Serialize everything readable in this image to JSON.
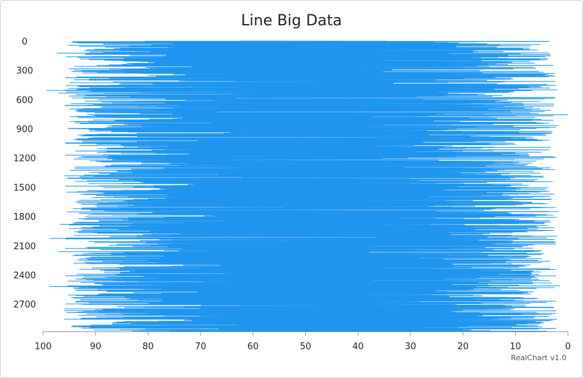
{
  "chart_data": {
    "type": "line",
    "title": "Line Big Data",
    "orientation": "horizontal",
    "xlabel": "",
    "ylabel": "",
    "xlim": [
      100,
      0
    ],
    "x_ticks": [
      100,
      90,
      80,
      70,
      60,
      50,
      40,
      30,
      20,
      10,
      0
    ],
    "ylim": [
      0,
      2980
    ],
    "y_ticks": [
      0,
      300,
      600,
      900,
      1200,
      1500,
      1800,
      2100,
      2400,
      2700
    ],
    "grid": false,
    "legend": "none",
    "series_color": "#1e96f0",
    "point_count": 2981,
    "generation": "pseudo-random noise between roughly 0 and 100, indexed 0..2980; the plot reads as a dense blue band spanning nearly the full value range",
    "sample_points": [
      {
        "index": 0,
        "value": 95
      },
      {
        "index": 300,
        "value": 4
      },
      {
        "index": 600,
        "value": 98
      },
      {
        "index": 900,
        "value": 3
      },
      {
        "index": 1200,
        "value": 97
      },
      {
        "index": 1500,
        "value": 1
      },
      {
        "index": 1800,
        "value": 96
      },
      {
        "index": 2100,
        "value": 5
      },
      {
        "index": 2400,
        "value": 99
      },
      {
        "index": 2700,
        "value": 2
      },
      {
        "index": 2980,
        "value": 92
      }
    ]
  },
  "credits": "RealChart v1.0"
}
